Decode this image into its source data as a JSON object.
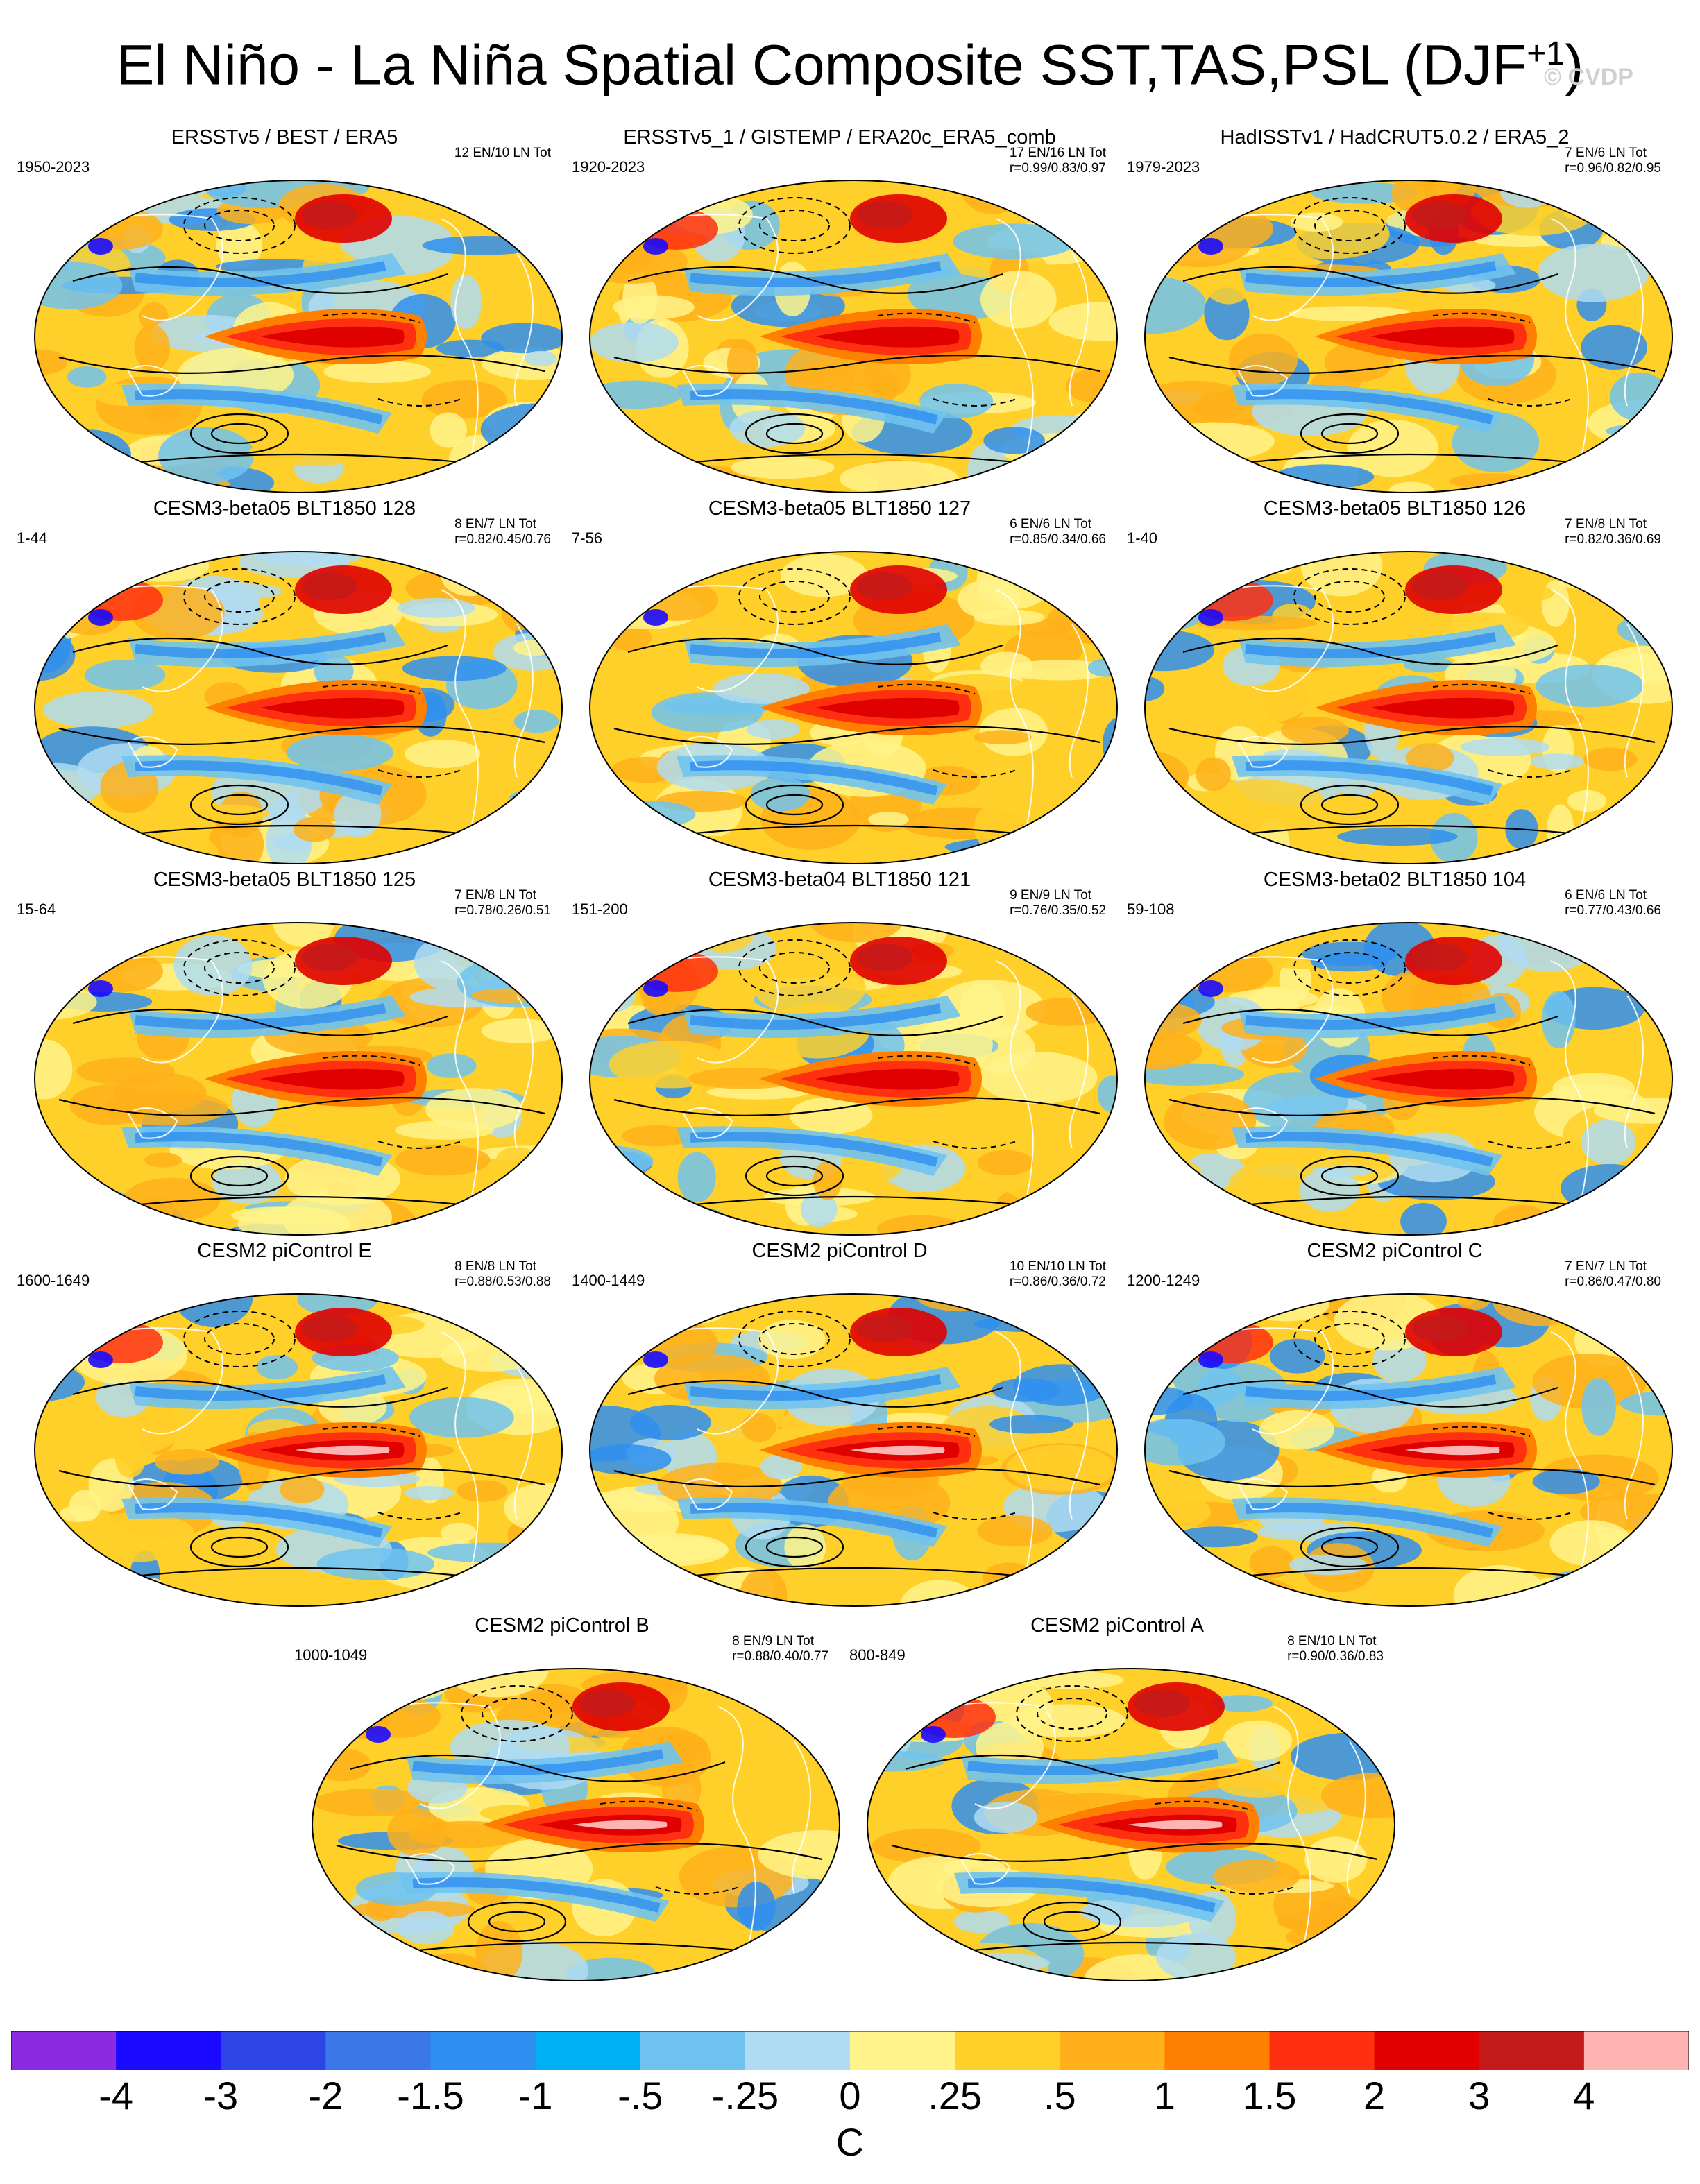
{
  "title": "El Niño - La Niña Spatial Composite SST,TAS,PSL (DJF",
  "title_sup": "+1",
  "title_close": ")",
  "watermark": "© CVDP",
  "panels": [
    {
      "title": "ERSSTv5 / BEST / ERA5",
      "years": "1950-2023",
      "stats1": "12 EN/10 LN Tot",
      "stats2": ""
    },
    {
      "title": "ERSSTv5_1 / GISTEMP / ERA20c_ERA5_comb",
      "years": "1920-2023",
      "stats1": "17 EN/16 LN Tot",
      "stats2": "r=0.99/0.83/0.97"
    },
    {
      "title": "HadISSTv1 / HadCRUT5.0.2 / ERA5_2",
      "years": "1979-2023",
      "stats1": "7 EN/6 LN Tot",
      "stats2": "r=0.96/0.82/0.95"
    },
    {
      "title": "CESM3-beta05 BLT1850 128",
      "years": "1-44",
      "stats1": "8 EN/7 LN Tot",
      "stats2": "r=0.82/0.45/0.76"
    },
    {
      "title": "CESM3-beta05 BLT1850 127",
      "years": "7-56",
      "stats1": "6 EN/6 LN Tot",
      "stats2": "r=0.85/0.34/0.66"
    },
    {
      "title": "CESM3-beta05 BLT1850 126",
      "years": "1-40",
      "stats1": "7 EN/8 LN Tot",
      "stats2": "r=0.82/0.36/0.69"
    },
    {
      "title": "CESM3-beta05 BLT1850 125",
      "years": "15-64",
      "stats1": "7 EN/8 LN Tot",
      "stats2": "r=0.78/0.26/0.51"
    },
    {
      "title": "CESM3-beta04 BLT1850 121",
      "years": "151-200",
      "stats1": "9 EN/9 LN Tot",
      "stats2": "r=0.76/0.35/0.52"
    },
    {
      "title": "CESM3-beta02 BLT1850 104",
      "years": "59-108",
      "stats1": "6 EN/6 LN Tot",
      "stats2": "r=0.77/0.43/0.66"
    },
    {
      "title": "CESM2 piControl E",
      "years": "1600-1649",
      "stats1": "8 EN/8 LN Tot",
      "stats2": "r=0.88/0.53/0.88"
    },
    {
      "title": "CESM2 piControl D",
      "years": "1400-1449",
      "stats1": "10 EN/10 LN Tot",
      "stats2": "r=0.86/0.36/0.72"
    },
    {
      "title": "CESM2 piControl C",
      "years": "1200-1249",
      "stats1": "7 EN/7 LN Tot",
      "stats2": "r=0.86/0.47/0.80"
    },
    {
      "title": "CESM2 piControl B",
      "years": "1000-1049",
      "stats1": "8 EN/9 LN Tot",
      "stats2": "r=0.88/0.40/0.77"
    },
    {
      "title": "CESM2 piControl A",
      "years": "800-849",
      "stats1": "8 EN/10 LN Tot",
      "stats2": "r=0.90/0.36/0.83"
    }
  ],
  "colorbar": {
    "unit": "C",
    "colors": [
      "#8a2be2",
      "#1a0aff",
      "#2d45e6",
      "#3a78e8",
      "#2f8ff0",
      "#00b0f5",
      "#70c3f0",
      "#b0dcf2",
      "#fff38a",
      "#ffd02a",
      "#ffb01a",
      "#ff8000",
      "#ff3010",
      "#e00000",
      "#c41a1a",
      "#ffb4b4"
    ],
    "labels": [
      "-4",
      "-3",
      "-2",
      "-1.5",
      "-1",
      "-.5",
      "-.25",
      "0",
      ".25",
      ".5",
      "1",
      "1.5",
      "2",
      "3",
      "4"
    ]
  }
}
